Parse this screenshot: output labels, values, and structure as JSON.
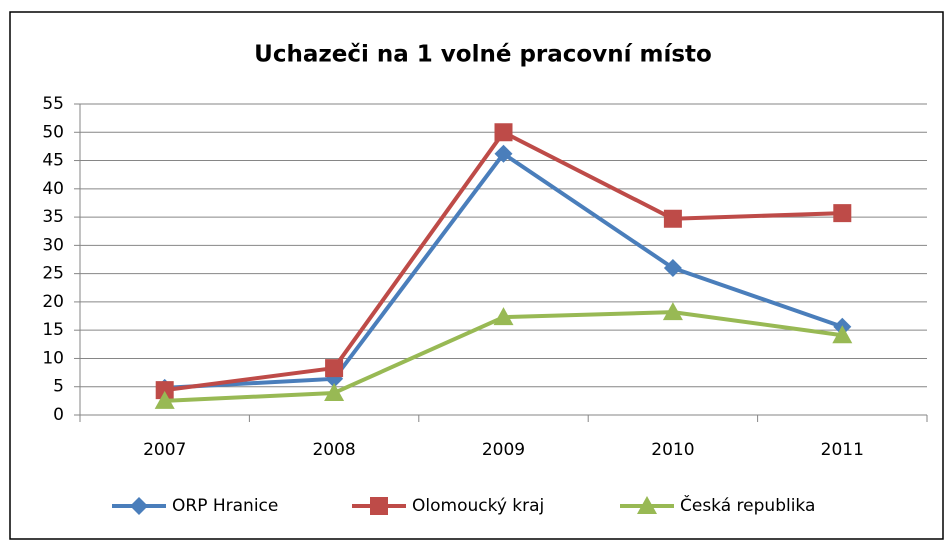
{
  "chart_data": {
    "type": "line",
    "title": "Uchazeči na 1 volné pracovní místo",
    "categories": [
      "2007",
      "2008",
      "2009",
      "2010",
      "2011"
    ],
    "series": [
      {
        "name": "ORP Hranice",
        "color": "#4a7ebb",
        "marker": "diamond",
        "values": [
          4.8,
          6.4,
          46.2,
          26,
          15.6
        ]
      },
      {
        "name": "Olomoucký kraj",
        "color": "#be4b48",
        "marker": "square",
        "values": [
          4.4,
          8.3,
          50,
          34.7,
          35.7
        ]
      },
      {
        "name": "Česká republika",
        "color": "#98b954",
        "marker": "triangle",
        "values": [
          2.5,
          3.9,
          17.3,
          18.2,
          14.1
        ]
      }
    ],
    "ylim": [
      0,
      55
    ],
    "yticks": [
      0,
      5,
      10,
      15,
      20,
      25,
      30,
      35,
      40,
      45,
      50,
      55
    ],
    "grid": true,
    "legend": "bottom"
  }
}
